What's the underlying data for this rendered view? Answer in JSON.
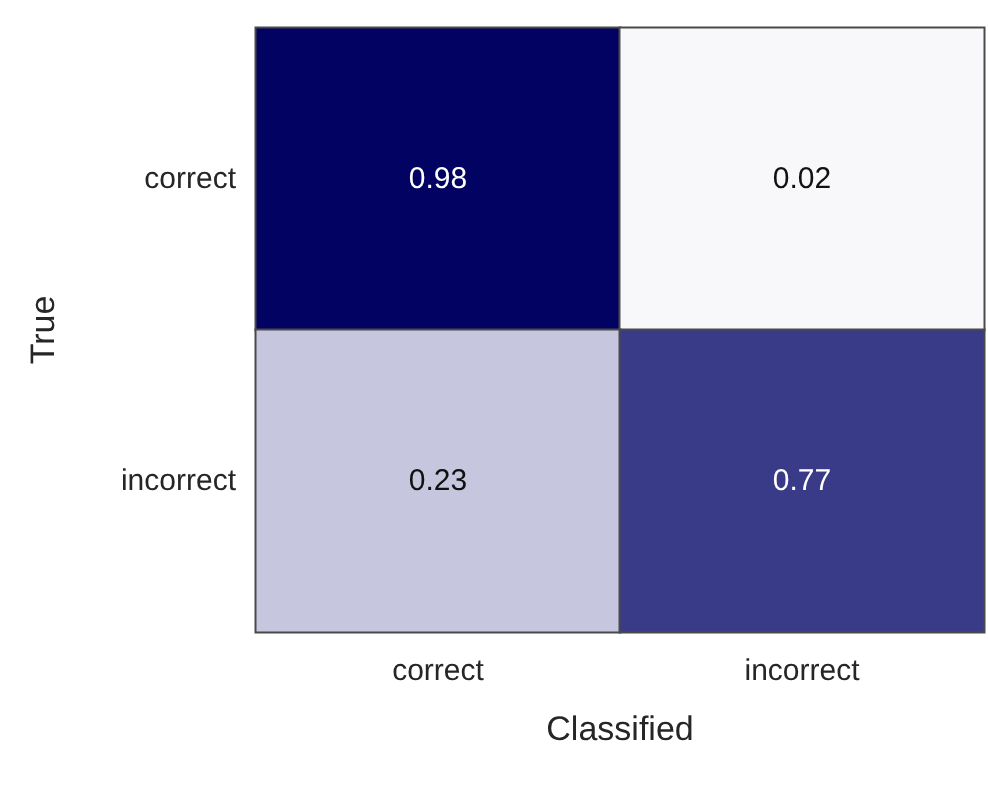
{
  "chart_data": {
    "type": "heatmap",
    "xlabel": "Classified",
    "ylabel": "True",
    "categories": [
      "correct",
      "incorrect"
    ],
    "y_categories": [
      "correct",
      "incorrect"
    ],
    "cells": [
      [
        0.98,
        0.02
      ],
      [
        0.23,
        0.77
      ]
    ],
    "colors": [
      [
        "#020263",
        "#f8f8fb"
      ],
      [
        "#c6c7de",
        "#393a88"
      ]
    ],
    "data_labels": true
  }
}
